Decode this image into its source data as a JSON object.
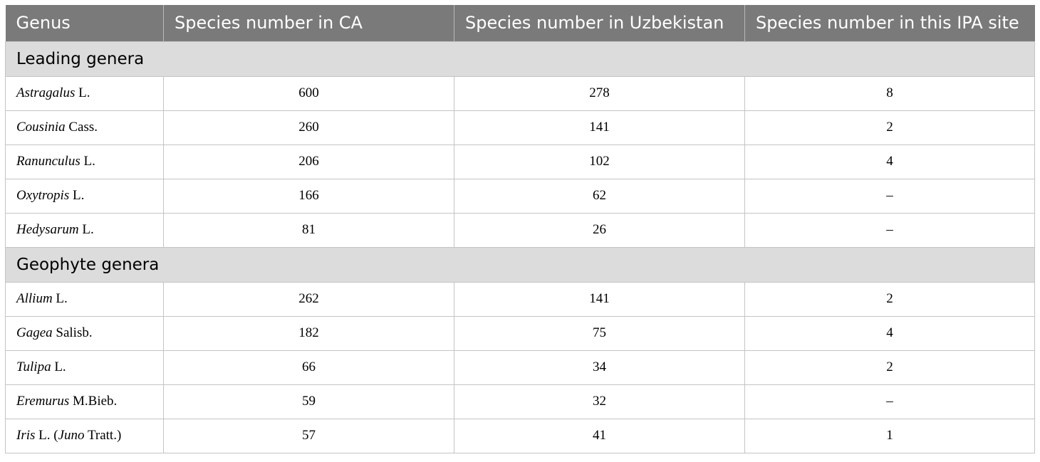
{
  "table": {
    "headers": [
      "Genus",
      "Species number in CA",
      "Species number in Uzbekistan",
      "Species number in this IPA site"
    ],
    "groups": [
      {
        "label": "Leading genera",
        "rows": [
          {
            "genus_italic": "Astragalus",
            "genus_rest": " L.",
            "ca": "600",
            "uz": "278",
            "ipa": "8"
          },
          {
            "genus_italic": "Cousinia",
            "genus_rest": " Cass.",
            "ca": "260",
            "uz": "141",
            "ipa": "2"
          },
          {
            "genus_italic": "Ranunculus",
            "genus_rest": " L.",
            "ca": "206",
            "uz": "102",
            "ipa": "4"
          },
          {
            "genus_italic": "Oxytropis",
            "genus_rest": " L.",
            "ca": "166",
            "uz": "62",
            "ipa": "–"
          },
          {
            "genus_italic": "Hedysarum",
            "genus_rest": " L.",
            "ca": "81",
            "uz": "26",
            "ipa": "–"
          }
        ]
      },
      {
        "label": "Geophyte genera",
        "rows": [
          {
            "genus_italic": "Allium",
            "genus_rest": " L.",
            "ca": "262",
            "uz": "141",
            "ipa": "2"
          },
          {
            "genus_italic": "Gagea",
            "genus_rest": " Salisb.",
            "ca": "182",
            "uz": "75",
            "ipa": "4"
          },
          {
            "genus_italic": "Tulipa",
            "genus_rest": " L.",
            "ca": "66",
            "uz": "34",
            "ipa": "2"
          },
          {
            "genus_italic": "Eremurus",
            "genus_rest": " M.Bieb.",
            "ca": "59",
            "uz": "32",
            "ipa": "–"
          },
          {
            "genus_italic": "Iris",
            "genus_rest": " L. (",
            "genus_italic2": "Juno",
            "genus_rest2": " Tratt.)",
            "ca": "57",
            "uz": "41",
            "ipa": "1"
          }
        ]
      }
    ]
  }
}
